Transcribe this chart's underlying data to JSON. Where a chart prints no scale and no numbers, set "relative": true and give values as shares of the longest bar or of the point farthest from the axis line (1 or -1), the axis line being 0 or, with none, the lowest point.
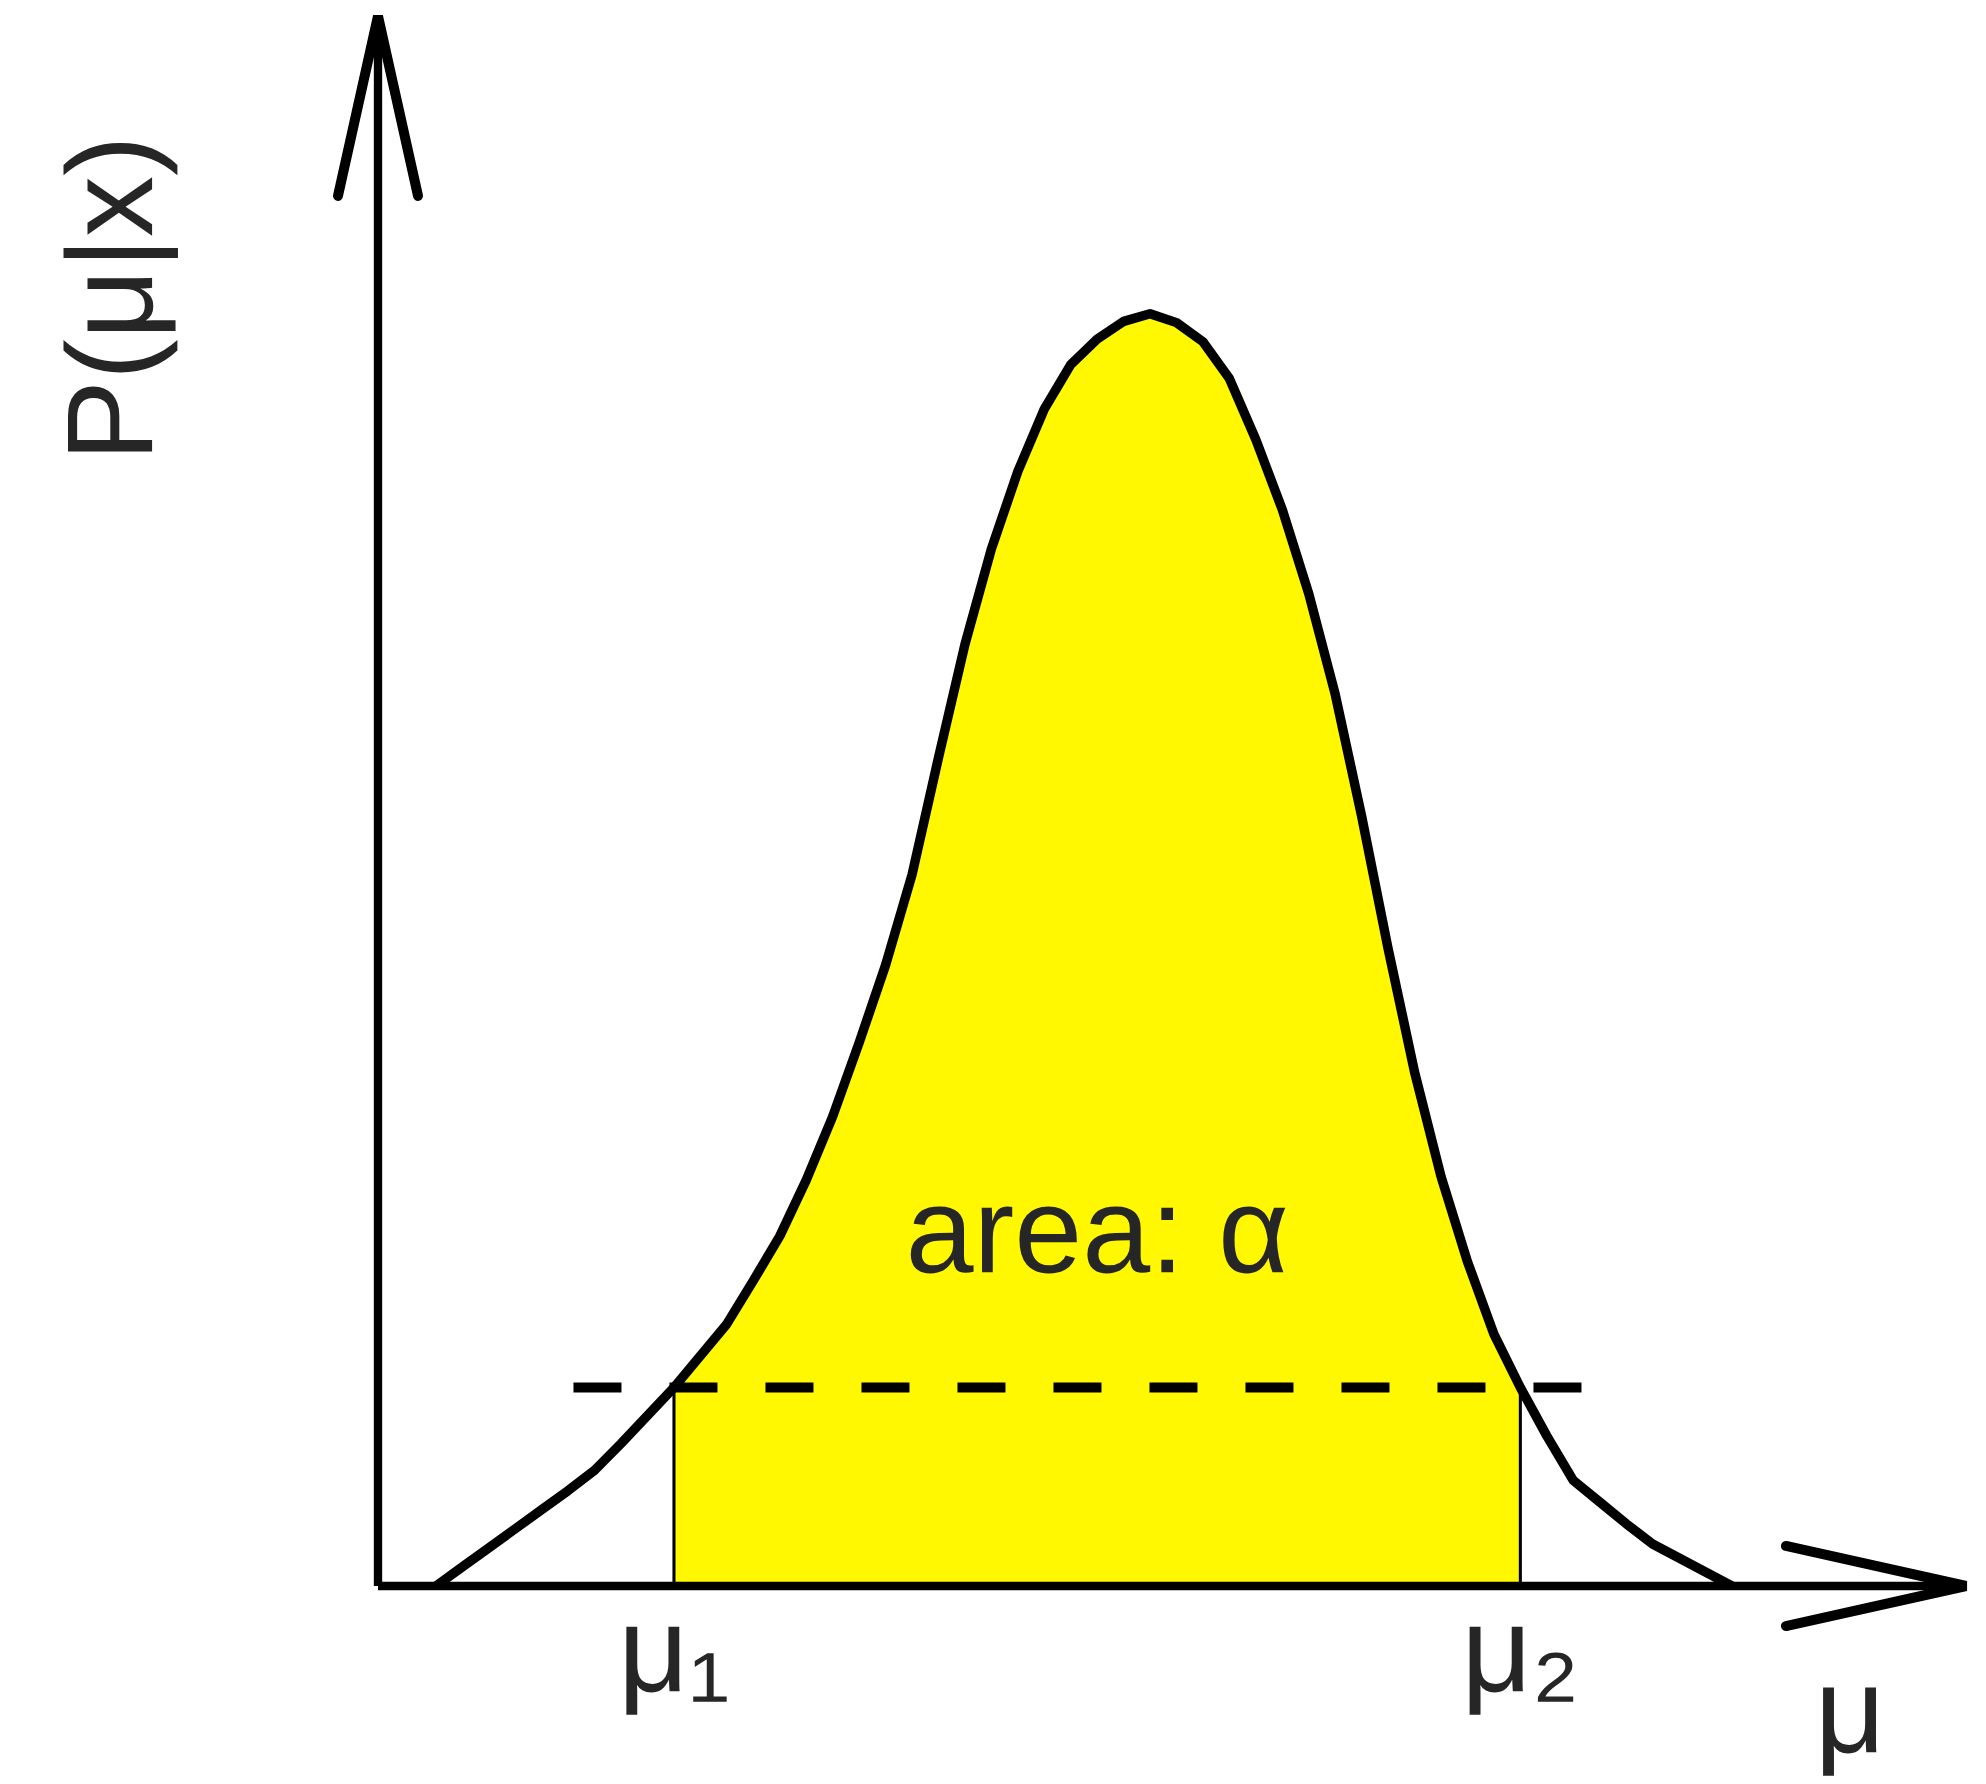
{
  "chart_data": {
    "type": "line",
    "relative": true,
    "ylabel": "P(μ|x)",
    "xlabel": "μ",
    "tick_labels": "x",
    "categories": [
      null,
      null,
      null,
      null,
      null,
      null,
      null,
      null,
      null,
      "μ₁",
      null,
      null,
      null,
      null,
      null,
      null,
      null,
      null,
      null,
      null,
      null,
      null,
      null,
      null,
      null,
      null,
      null,
      null,
      null,
      null,
      null,
      null,
      null,
      null,
      null,
      null,
      null,
      null,
      null,
      null,
      null,
      "μ₂",
      null,
      null,
      null,
      null,
      null,
      null,
      null,
      null
    ],
    "series": [
      {
        "type": "area",
        "color": "#fff800",
        "values": [
          null,
          null,
          null,
          null,
          null,
          null,
          null,
          null,
          null,
          0.156,
          0.181,
          0.206,
          0.24,
          0.275,
          0.319,
          0.369,
          0.427,
          0.488,
          0.559,
          0.651,
          0.74,
          0.815,
          0.876,
          0.925,
          0.96,
          0.98,
          0.994,
          1.0,
          0.993,
          0.978,
          0.949,
          0.901,
          0.846,
          0.78,
          0.701,
          0.605,
          0.501,
          0.404,
          0.322,
          0.255,
          0.198,
          0.156,
          null,
          null,
          null,
          null,
          null,
          null,
          null,
          null
        ]
      },
      {
        "type": "line",
        "color": "#000000",
        "values": [
          0,
          0.015,
          0.03,
          0.045,
          0.06,
          0.075,
          0.091,
          0.112,
          0.134,
          0.156,
          0.181,
          0.206,
          0.24,
          0.275,
          0.319,
          0.369,
          0.427,
          0.488,
          0.559,
          0.651,
          0.74,
          0.815,
          0.876,
          0.925,
          0.96,
          0.98,
          0.994,
          1.0,
          0.993,
          0.978,
          0.949,
          0.901,
          0.846,
          0.78,
          0.701,
          0.605,
          0.501,
          0.404,
          0.322,
          0.255,
          0.198,
          0.156,
          0.118,
          0.083,
          0.066,
          0.049,
          0.033,
          0.022,
          0.011,
          0
        ]
      }
    ],
    "ref_lines": [
      {
        "axis": "y",
        "value": 0.156,
        "line_style": "dashed",
        "color": "#000000"
      }
    ],
    "annotations": [
      "area: α"
    ]
  }
}
